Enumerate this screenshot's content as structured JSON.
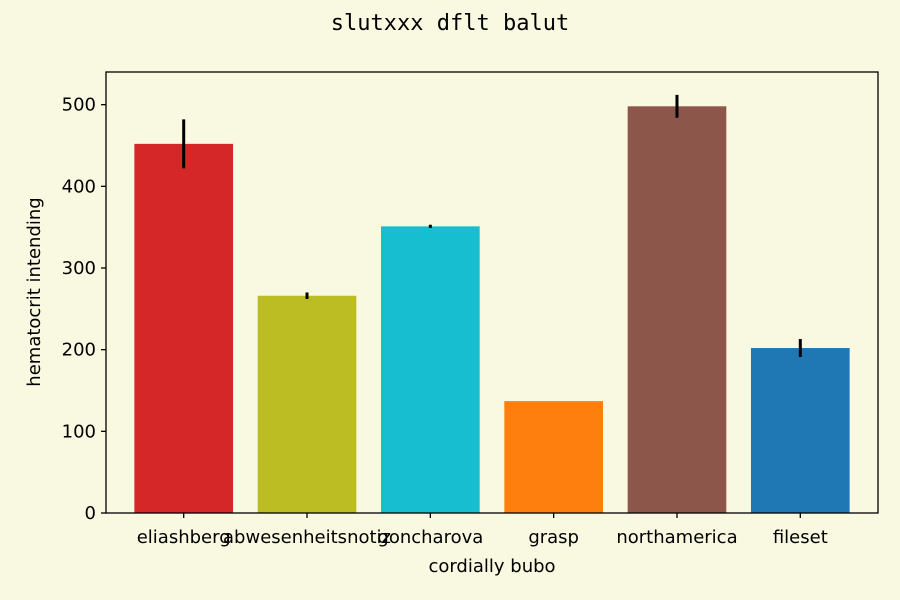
{
  "chart_data": {
    "type": "bar",
    "title": "slutxxx dflt balut",
    "xlabel": "cordially bubo",
    "ylabel": "hematocrit intending",
    "categories": [
      "eliashberg",
      "abwesenheitsnotiz",
      "goncharova",
      "grasp",
      "northamerica",
      "fileset"
    ],
    "values": [
      452,
      266,
      351,
      137,
      498,
      202
    ],
    "errors": [
      30,
      4,
      2,
      0,
      14,
      11
    ],
    "colors": [
      "#d62728",
      "#bcbd22",
      "#17becf",
      "#ff7f0e",
      "#8c564b",
      "#1f77b4"
    ],
    "ylim": [
      0,
      540
    ],
    "yticks": [
      0,
      100,
      200,
      300,
      400,
      500
    ],
    "grid": false,
    "background": "#f9f8e1"
  }
}
